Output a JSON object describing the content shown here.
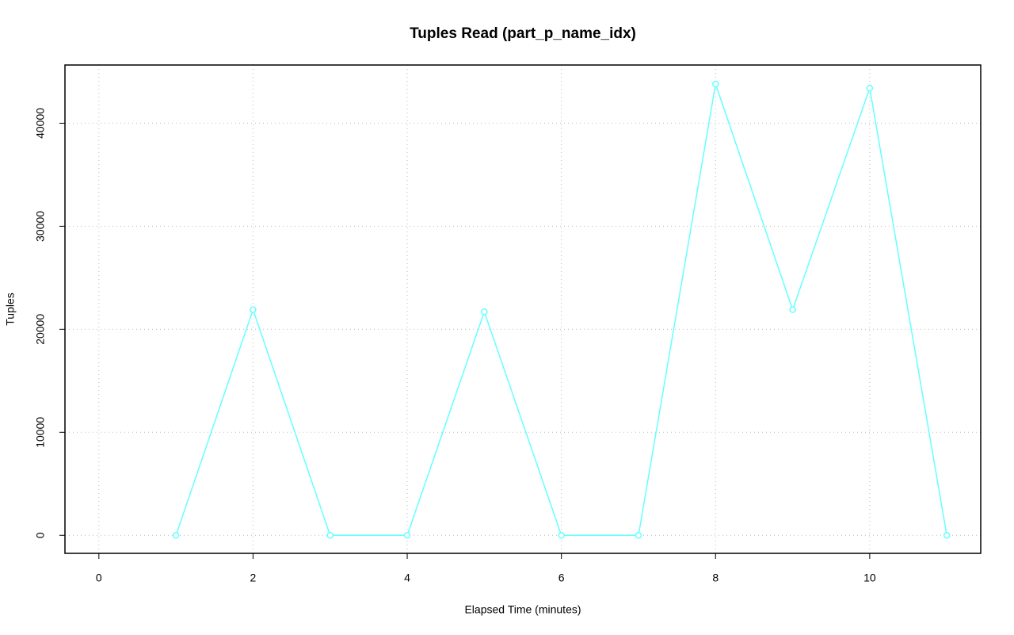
{
  "chart_data": {
    "type": "line",
    "title": "Tuples Read (part_p_name_idx)",
    "x_label": "Elapsed Time (minutes)",
    "y_label": "Tuples",
    "x": [
      1,
      2,
      3,
      4,
      5,
      6,
      7,
      8,
      9,
      10,
      11
    ],
    "series": [
      {
        "color": "#66ffff",
        "values": [
          0,
          21900,
          0,
          0,
          21700,
          0,
          0,
          43800,
          21900,
          43400,
          0
        ]
      }
    ],
    "xlim": [
      -0.44,
      11.44
    ],
    "xticks": [
      0,
      2,
      4,
      6,
      8,
      10
    ],
    "ylim": [
      -1750,
      45650
    ],
    "yticks": [
      0,
      10000,
      20000,
      30000,
      40000
    ],
    "grid": true
  }
}
